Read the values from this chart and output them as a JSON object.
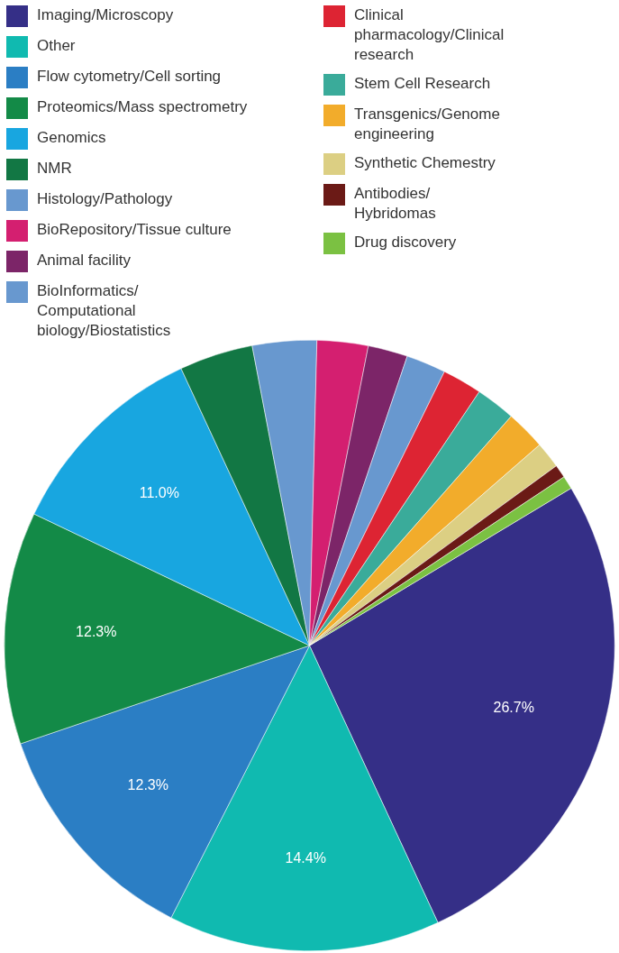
{
  "chart_data": {
    "type": "pie",
    "legend": "top",
    "categories": [
      "Imaging/Microscopy",
      "Other",
      "Flow cytometry/Cell sorting",
      "Proteomics/Mass spectrometry",
      "Genomics",
      "NMR",
      "Histology/Pathology",
      "BioRepository/Tissue culture",
      "Animal facility",
      "BioInformatics/Computational biology/Biostatistics",
      "Clinical pharmacology/Clinical research",
      "Stem Cell Research",
      "Transgenics/Genome engineering",
      "Synthetic Chemestry",
      "Antibodies/Hybridomas",
      "Drug discovery"
    ],
    "values": [
      26.7,
      14.4,
      12.3,
      12.3,
      11.0,
      3.9,
      3.4,
      2.7,
      2.1,
      2.1,
      2.1,
      2.1,
      2.1,
      1.4,
      0.7,
      0.7
    ],
    "colors": [
      "#352f87",
      "#10bab0",
      "#2b7ec4",
      "#138a47",
      "#18a6e0",
      "#127744",
      "#6898cf",
      "#d41f70",
      "#7c2568",
      "#6898cf",
      "#dd2433",
      "#3aab9a",
      "#f2ac2b",
      "#dccf83",
      "#6b1a16",
      "#7bc142"
    ],
    "value_labels": [
      "26.7%",
      "14.4%",
      "12.3%",
      "12.3%",
      "11.0%",
      null,
      null,
      null,
      null,
      null,
      null,
      null,
      null,
      null,
      null,
      null
    ]
  }
}
